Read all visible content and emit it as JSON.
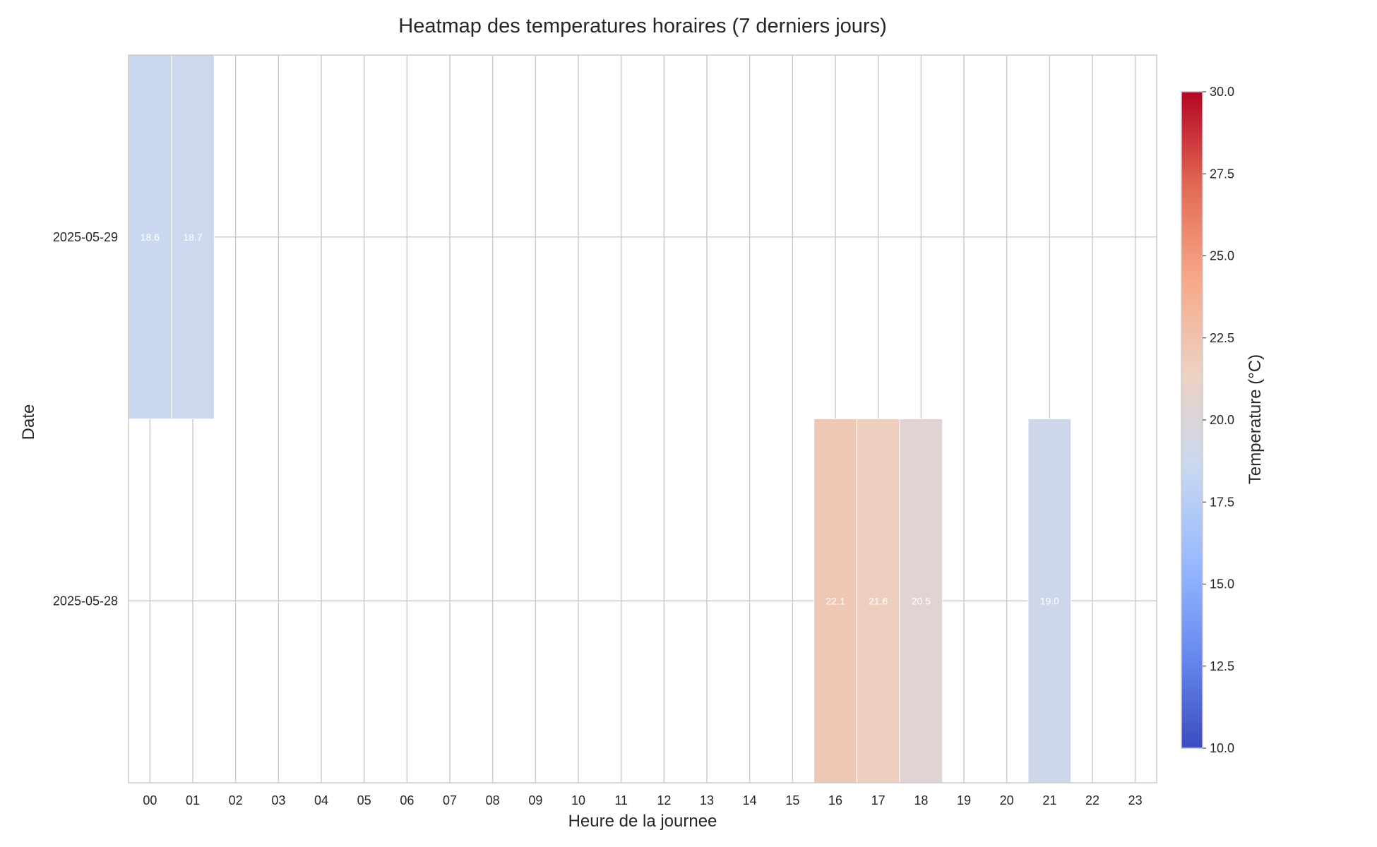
{
  "chart_data": {
    "type": "heatmap",
    "title": "Heatmap des temperatures horaires (7 derniers jours)",
    "xlabel": "Heure de la journee",
    "ylabel": "Date",
    "x_categories": [
      "00",
      "01",
      "02",
      "03",
      "04",
      "05",
      "06",
      "07",
      "08",
      "09",
      "10",
      "11",
      "12",
      "13",
      "14",
      "15",
      "16",
      "17",
      "18",
      "19",
      "20",
      "21",
      "22",
      "23"
    ],
    "y_categories": [
      "2025-05-29",
      "2025-05-28"
    ],
    "cells": [
      {
        "date": "2025-05-29",
        "hour": "00",
        "value": 18.6,
        "label": "18.6"
      },
      {
        "date": "2025-05-29",
        "hour": "01",
        "value": 18.7,
        "label": "18.7"
      },
      {
        "date": "2025-05-28",
        "hour": "16",
        "value": 22.1,
        "label": "22.1"
      },
      {
        "date": "2025-05-28",
        "hour": "17",
        "value": 21.6,
        "label": "21.6"
      },
      {
        "date": "2025-05-28",
        "hour": "18",
        "value": 20.5,
        "label": "20.5"
      },
      {
        "date": "2025-05-28",
        "hour": "21",
        "value": 19.0,
        "label": "19.0"
      }
    ],
    "colorbar": {
      "label": "Temperature (°C)",
      "min": 10.0,
      "max": 30.0,
      "ticks": [
        "10.0",
        "12.5",
        "15.0",
        "17.5",
        "20.0",
        "22.5",
        "25.0",
        "27.5",
        "30.0"
      ],
      "colormap": "coolwarm",
      "colormap_stops": [
        "#3b4cc0",
        "#688aef",
        "#99baff",
        "#c9d8f0",
        "#edd1c2",
        "#f7a889",
        "#e26952",
        "#b40426"
      ]
    },
    "grid": true,
    "grid_color": "#cccccc",
    "frame_color": "#cccccc"
  }
}
